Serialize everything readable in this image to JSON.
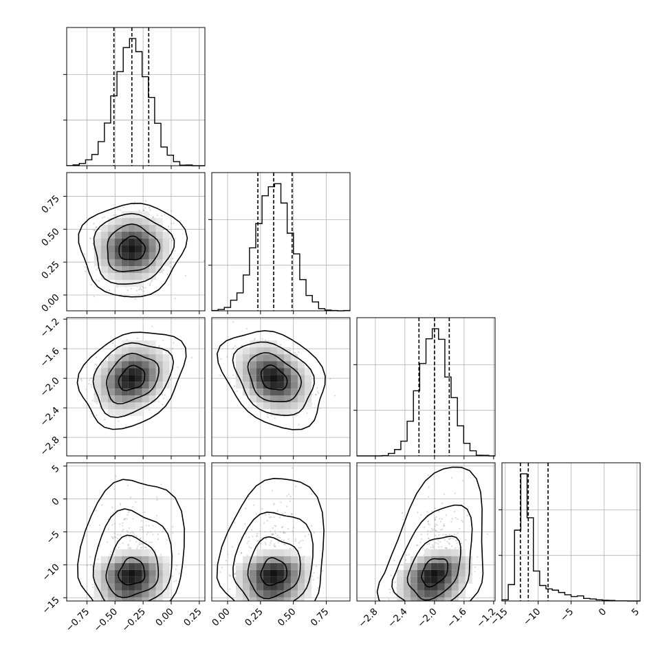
{
  "chart_data": {
    "type": "corner",
    "title": "",
    "parameters": [
      {
        "range": [
          -0.93,
          0.3
        ],
        "ticks": [
          -0.75,
          -0.5,
          -0.25,
          0.0,
          0.25
        ],
        "tick_labels": [
          "−0.75",
          "−0.50",
          "−0.25",
          "0.00",
          "0.25"
        ],
        "median": -0.35,
        "sigma": 0.15,
        "q16": -0.51,
        "q50": -0.35,
        "q84": -0.2,
        "hist_peak_x": -0.33
      },
      {
        "range": [
          -0.12,
          0.93
        ],
        "ticks": [
          0.0,
          0.25,
          0.5,
          0.75
        ],
        "tick_labels": [
          "0.00",
          "0.25",
          "0.50",
          "0.75"
        ],
        "median": 0.35,
        "sigma": 0.13,
        "q16": 0.23,
        "q50": 0.35,
        "q84": 0.49,
        "hist_peak_x": 0.35
      },
      {
        "range": [
          -3.05,
          -1.18
        ],
        "ticks": [
          -2.8,
          -2.4,
          -2.0,
          -1.6,
          -1.2
        ],
        "tick_labels": [
          "−2.8",
          "−2.4",
          "−2.0",
          "−1.6",
          "−1.2"
        ],
        "median": -2.0,
        "sigma": 0.2,
        "q16": -2.21,
        "q50": -2.0,
        "q84": -1.8,
        "hist_peak_x": -2.0
      },
      {
        "range": [
          -15.5,
          5.5
        ],
        "ticks": [
          -15,
          -10,
          -5,
          0,
          5
        ],
        "tick_labels": [
          "−15",
          "−10",
          "−5",
          "0",
          "5"
        ],
        "median": -11.5,
        "sigma": 1.5,
        "q16": -12.7,
        "q50": -11.5,
        "q84": -8.5,
        "hist_peak_x": -12.2
      }
    ],
    "correlations": [
      [
        0,
        1,
        0.05
      ],
      [
        0,
        2,
        0.3
      ],
      [
        0,
        3,
        0.1
      ],
      [
        1,
        2,
        -0.35
      ],
      [
        1,
        3,
        0.1
      ],
      [
        2,
        3,
        0.4
      ]
    ],
    "contour_levels_sigma": [
      0.5,
      1.0,
      1.5,
      2.0
    ],
    "grid": true,
    "quantile_lines": "dashed"
  }
}
